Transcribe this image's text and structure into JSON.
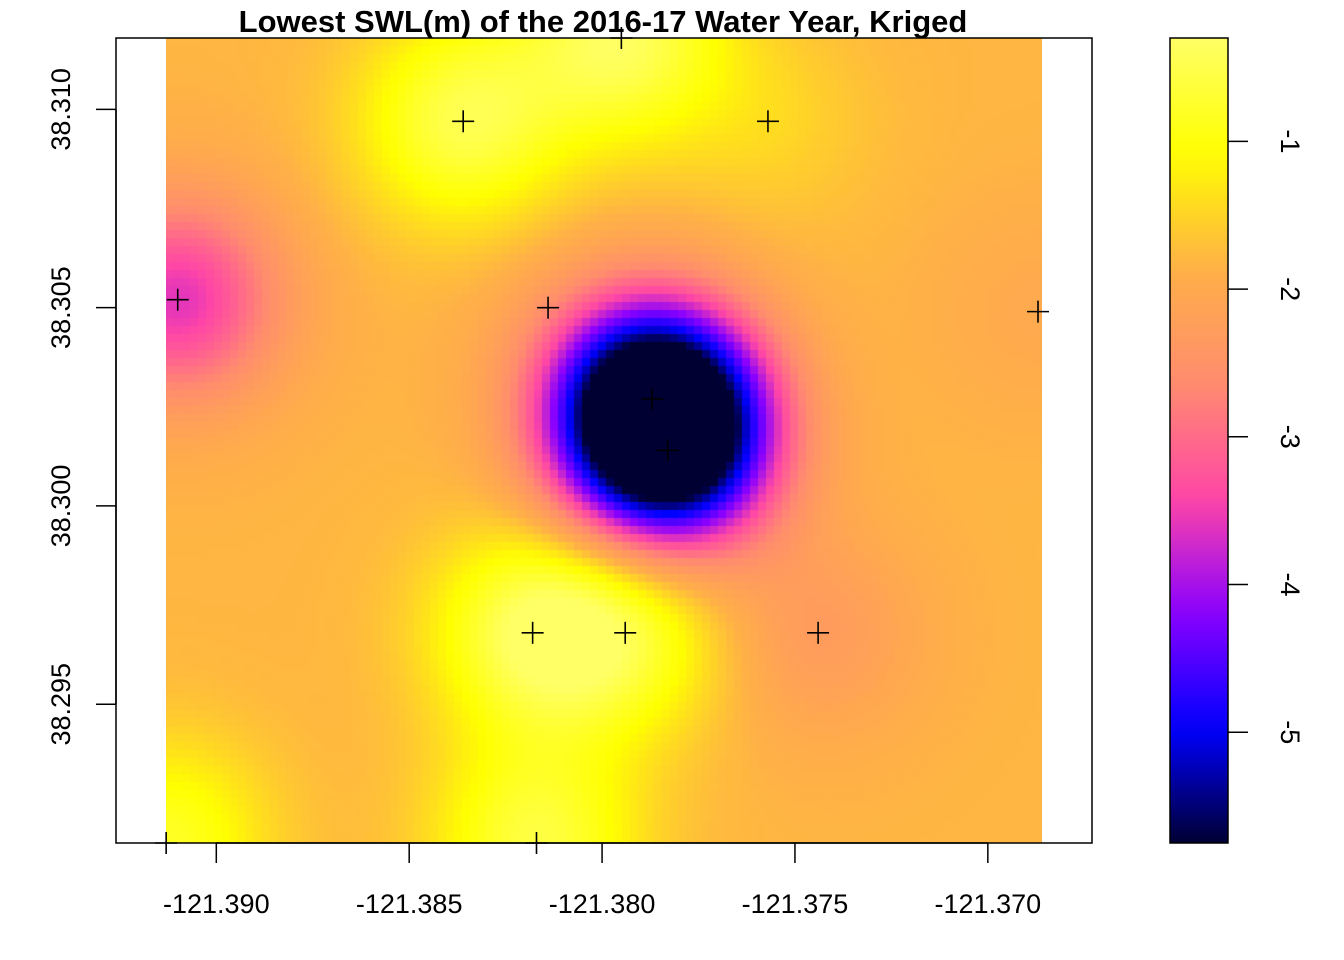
{
  "chart_data": {
    "type": "heatmap",
    "title": "Lowest SWL(m) of the 2016-17 Water Year, Kriged",
    "xlabel": "",
    "ylabel": "",
    "xlim": [
      -121.3926,
      -121.3673
    ],
    "ylim": [
      38.2915,
      38.3118
    ],
    "x_ticks": [
      -121.39,
      -121.385,
      -121.38,
      -121.375,
      -121.37
    ],
    "x_tick_labels": [
      "-121.390",
      "-121.385",
      "-121.380",
      "-121.375",
      "-121.370"
    ],
    "y_ticks": [
      38.295,
      38.3,
      38.305,
      38.31
    ],
    "y_tick_labels": [
      "38.295",
      "38.300",
      "38.305",
      "38.310"
    ],
    "raster_extent": {
      "x": [
        -121.3913,
        -121.3686
      ],
      "y": [
        38.2915,
        38.3118
      ]
    },
    "background_value": -1.8,
    "colorbar": {
      "min": -5.75,
      "max": -0.3,
      "ticks": [
        -5,
        -4,
        -3,
        -2,
        -1
      ],
      "tick_labels": [
        "-5",
        "-4",
        "-3",
        "-2",
        "-1"
      ],
      "palette": [
        "#000033",
        "#0000ff",
        "#8a00ff",
        "#ff46a6",
        "#ff8c6e",
        "#ffb047",
        "#ffff00",
        "#ffff66"
      ]
    },
    "wells": [
      {
        "x": -121.3836,
        "y": 38.3097,
        "value": -0.5
      },
      {
        "x": -121.3795,
        "y": 38.3118,
        "value": -0.4
      },
      {
        "x": -121.3757,
        "y": 38.3097,
        "value": -1.5
      },
      {
        "x": -121.391,
        "y": 38.3052,
        "value": -3.6
      },
      {
        "x": -121.3814,
        "y": 38.305,
        "value": -1.9
      },
      {
        "x": -121.3687,
        "y": 38.3049,
        "value": -2.0
      },
      {
        "x": -121.3787,
        "y": 38.3027,
        "value": -5.7
      },
      {
        "x": -121.3783,
        "y": 38.3014,
        "value": -5.3
      },
      {
        "x": -121.3818,
        "y": 38.2968,
        "value": -0.5
      },
      {
        "x": -121.3794,
        "y": 38.2968,
        "value": -0.8
      },
      {
        "x": -121.3744,
        "y": 38.2968,
        "value": -2.3
      },
      {
        "x": -121.3913,
        "y": 38.2915,
        "value": -0.8
      },
      {
        "x": -121.3817,
        "y": 38.2915,
        "value": -0.6
      }
    ]
  }
}
